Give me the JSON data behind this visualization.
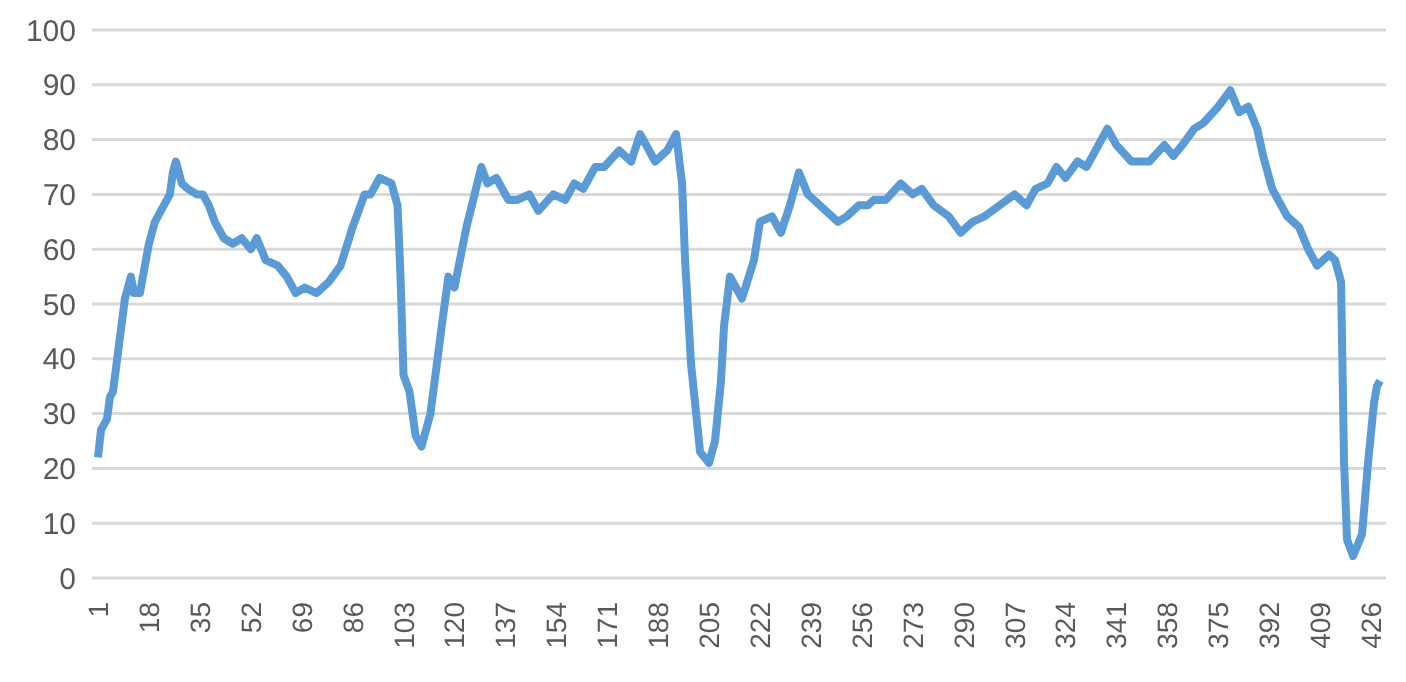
{
  "chart_data": {
    "type": "line",
    "x": [
      1,
      2,
      4,
      5,
      6,
      10,
      12,
      13,
      15,
      18,
      20,
      25,
      26,
      27,
      29,
      31,
      34,
      36,
      38,
      40,
      43,
      46,
      49,
      52,
      54,
      57,
      61,
      64,
      67,
      70,
      74,
      78,
      82,
      86,
      90,
      92,
      95,
      99,
      101,
      102,
      103,
      105,
      107,
      109,
      112,
      116,
      118,
      120,
      124,
      129,
      131,
      134,
      138,
      141,
      145,
      148,
      153,
      157,
      160,
      163,
      167,
      170,
      175,
      179,
      182,
      187,
      191,
      194,
      196,
      197,
      199,
      202,
      205,
      207,
      209,
      210,
      212,
      216,
      220,
      222,
      226,
      229,
      232,
      235,
      238,
      244,
      248,
      251,
      255,
      258,
      260,
      264,
      269,
      273,
      276,
      280,
      285,
      289,
      293,
      297,
      302,
      307,
      311,
      314,
      318,
      321,
      324,
      328,
      331,
      334,
      338,
      341,
      346,
      352,
      357,
      360,
      363,
      367,
      370,
      375,
      379,
      382,
      385,
      388,
      390,
      393,
      395,
      398,
      402,
      405,
      408,
      412,
      414,
      416,
      417,
      418,
      420,
      423,
      425,
      427,
      428,
      429
    ],
    "series": [
      {
        "color": "#5b9bd5",
        "values": [
          22,
          27,
          29,
          33,
          34,
          51,
          55,
          52,
          52,
          61,
          65,
          70,
          74,
          76,
          72,
          71,
          70,
          70,
          68,
          65,
          62,
          61,
          62,
          60,
          62,
          58,
          57,
          55,
          52,
          53,
          52,
          54,
          57,
          64,
          70,
          70,
          73,
          72,
          68,
          55,
          37,
          34,
          26,
          24,
          30,
          47,
          55,
          53,
          64,
          75,
          72,
          73,
          69,
          69,
          70,
          67,
          70,
          69,
          72,
          71,
          75,
          75,
          78,
          76,
          81,
          76,
          78,
          81,
          72,
          58,
          39,
          23,
          21,
          25,
          36,
          46,
          55,
          51,
          58,
          65,
          66,
          63,
          68,
          74,
          70,
          67,
          65,
          66,
          68,
          68,
          69,
          69,
          72,
          70,
          71,
          68,
          66,
          63,
          65,
          66,
          68,
          70,
          68,
          71,
          72,
          75,
          73,
          76,
          75,
          78,
          82,
          79,
          76,
          76,
          79,
          77,
          79,
          82,
          83,
          86,
          89,
          85,
          86,
          82,
          77,
          71,
          69,
          66,
          64,
          60,
          57,
          59,
          58,
          54,
          21,
          7,
          4,
          8,
          21,
          32,
          35,
          36
        ]
      }
    ],
    "xlim": [
      -1,
      431
    ],
    "xticks": [
      1,
      18,
      35,
      52,
      69,
      86,
      103,
      120,
      137,
      154,
      171,
      188,
      205,
      222,
      239,
      256,
      273,
      290,
      307,
      324,
      341,
      358,
      375,
      392,
      409,
      426
    ],
    "ylim": [
      0,
      100
    ],
    "yticks": [
      0,
      10,
      20,
      30,
      40,
      50,
      60,
      70,
      80,
      90,
      100
    ],
    "grid": "y",
    "legend": false,
    "marker": "none",
    "line_style": "solid"
  }
}
